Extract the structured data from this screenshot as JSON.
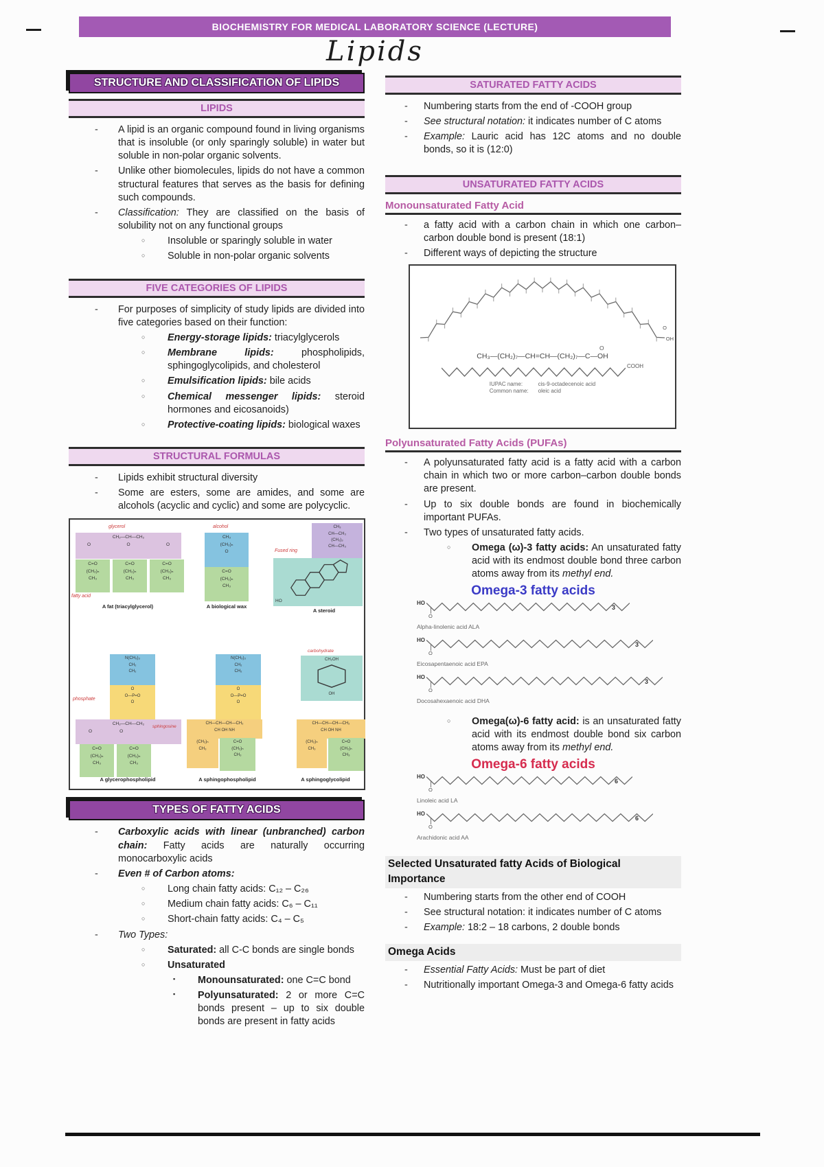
{
  "page": {
    "banner": "BIOCHEMISTRY FOR MEDICAL LABORATORY SCIENCE (LECTURE)",
    "title": "Lipids"
  },
  "colors": {
    "banner_purple": "#a35ab4",
    "header_dark_purple": "#9146a1",
    "header_light_bg": "#efd9ef",
    "header_light_text": "#ab57ad",
    "subhead_pink": "#b75ba4",
    "omega3_blue": "#3a3ac6",
    "omega6_red": "#d62b4e",
    "figure_label_red": "#cc3a3a"
  },
  "left": {
    "main_header": "STRUCTURE AND CLASSIFICATION OF LIPIDS",
    "lipids": {
      "header": "LIPIDS",
      "b1": {
        "text": "A lipid is an organic compound found in living organisms that is insoluble (or only sparingly soluble) in water but soluble in non-polar organic solvents."
      },
      "b2": {
        "text": "Unlike other biomolecules, lipids do not have a common structural features that serves as the basis for defining such compounds."
      },
      "b3": {
        "lead": "Classification:",
        "text": " They are classified on the basis of solubility not on any functional groups"
      },
      "b3a": {
        "text": "Insoluble or sparingly soluble in water"
      },
      "b3b": {
        "text": "Soluble in non-polar organic solvents"
      }
    },
    "five": {
      "header": "FIVE CATEGORIES OF LIPIDS",
      "b1": {
        "text": "For purposes of simplicity of study lipids are divided into five categories based on their function:"
      },
      "cats": [
        {
          "lead": "Energy-storage lipids:",
          "text": " triacylglycerols"
        },
        {
          "lead": "Membrane lipids:",
          "text": " phospholipids, sphingoglycolipids, and cholesterol"
        },
        {
          "lead": "Emulsification lipids:",
          "text": " bile acids"
        },
        {
          "lead": "Chemical messenger lipids:",
          "text": " steroid hormones and eicosanoids)"
        },
        {
          "lead": "Protective-coating lipids:",
          "text": " biological waxes"
        }
      ]
    },
    "structural": {
      "header": "STRUCTURAL FORMULAS",
      "b1": {
        "text": "Lipids exhibit structural diversity"
      },
      "b2": {
        "text": "Some are esters, some are amides, and some are alcohols (acyclic and cyclic) and some are polycyclic."
      }
    },
    "figure": {
      "labels": {
        "glycerol": "glycerol",
        "fatty_acid": "fatty acid",
        "alcohol": "alcohol",
        "fused_ring": "Fused ring",
        "phosphate": "phosphate",
        "sphingosine": "sphingosine",
        "carbohydrate": "carbohydrate"
      },
      "captions": {
        "fat": "A fat (triacylglycerol)",
        "wax": "A biological wax",
        "steroid": "A steroid",
        "glycero": "A glycerophospholipid",
        "sphingoph": "A sphingophospholipid",
        "sphingogly": "A sphingoglycolipid"
      },
      "f": {
        "glycerol_row": "CH₂—CH—CH₂",
        "o": "O",
        "ester": "C=O",
        "chain": "(CH₂)ₙ",
        "methyl": "CH₃",
        "amine": "N(CH₃)₃",
        "ch2": "CH₂",
        "phos": "O—P=O",
        "sphA": "CH—CH—CH—CH₂",
        "sphB": "CH   OH   NH",
        "carb_top": "CH₂OH",
        "ho": "HO",
        "oh": "OH",
        "side1": "CH₃",
        "side2": "CH—CH₃",
        "side3": "(CH₂)₃",
        "side4": "CH—CH₃"
      }
    },
    "types": {
      "header": "TYPES OF FATTY ACIDS",
      "b1": {
        "lead": "Carboxylic acids with linear (unbranched) carbon chain:",
        "text": " Fatty acids are naturally occurring monocarboxylic acids"
      },
      "b2": {
        "lead": "Even # of Carbon atoms:",
        "text": ""
      },
      "chains": [
        {
          "text": "Long chain fatty acids:  C₁₂ – C₂₆"
        },
        {
          "text": "Medium chain fatty acids: C₆ – C₁₁"
        },
        {
          "text": "Short-chain fatty acids:  C₄ – C₅"
        }
      ],
      "b3": {
        "lead": "Two Types:",
        "text": ""
      },
      "sat": {
        "lead": "Saturated:",
        "text": " all C-C bonds are single bonds"
      },
      "unsat": {
        "lead": "Unsaturated",
        "text": ""
      },
      "mono": {
        "lead": "Monounsaturated:",
        "text": " one C=C bond"
      },
      "poly": {
        "lead": "Polyunsaturated:",
        "text": " 2 or more C=C bonds present – up to six double bonds are present in fatty acids"
      }
    }
  },
  "right": {
    "saturated": {
      "header": "SATURATED FATTY ACIDS",
      "b1": {
        "text": "Numbering starts from the end of -COOH group"
      },
      "b2": {
        "lead": "See structural notation:",
        "text": " it indicates number of C atoms"
      },
      "b3": {
        "lead": "Example:",
        "text": " Lauric acid has 12C atoms and no double bonds, so it is (12:0)"
      }
    },
    "unsaturated": {
      "header": "UNSATURATED FATTY ACIDS",
      "mono_head": "Monounsaturated Fatty Acid",
      "b1": {
        "text": "a fatty acid with a carbon chain in which one carbon–carbon double bond is present (18:1)"
      },
      "b2": {
        "text": "Different ways of depicting the structure"
      },
      "figure": {
        "condensed": "CH₃—(CH₂)₇—CH=CH—(CH₂)₇—C—OH",
        "o": "O",
        "oh": "OH",
        "cooh": "COOH",
        "iupac_label": "IUPAC name:",
        "iupac": "cis-9-octadecenoic acid",
        "common_label": "Common name:",
        "common": "oleic acid"
      }
    },
    "pufa": {
      "head": "Polyunsaturated Fatty Acids (PUFAs)",
      "b1": {
        "text": "A polyunsaturated fatty acid is a fatty acid with a carbon chain in which two or more carbon–carbon double bonds are present."
      },
      "b2": {
        "text": "Up to six double bonds are found in biochemically important PUFAs."
      },
      "b3": {
        "text": "Two types of unsaturated fatty acids."
      },
      "omega3": {
        "lead": "Omega (ω)-3 fatty acids:",
        "text": " An unsaturated fatty acid with its endmost double bond three carbon atoms away from its ",
        "tail": "methyl end."
      },
      "omega3_title": "Omega-3 fatty acids",
      "omega3_structs": [
        {
          "ho": "HO",
          "o": "O",
          "num": "3",
          "name": "Alpha-linolenic acid   ALA"
        },
        {
          "ho": "HO",
          "o": "O",
          "num": "3",
          "name": "Eicosapentaenoic acid   EPA"
        },
        {
          "ho": "HO",
          "o": "O",
          "num": "3",
          "name": "Docosahexaenoic acid   DHA"
        }
      ],
      "omega6": {
        "lead": "Omega(ω)-6 fatty acid:",
        "text": " is an unsaturated fatty acid with its endmost double bond six carbon atoms away from its ",
        "tail": "methyl end."
      },
      "omega6_title": "Omega-6 fatty acids",
      "omega6_structs": [
        {
          "ho": "HO",
          "o": "O",
          "num": "6",
          "name": "Linoleic acid   LA"
        },
        {
          "ho": "HO",
          "o": "O",
          "num": "6",
          "name": "Arachidonic acid   AA"
        }
      ]
    },
    "selected": {
      "head": "Selected Unsaturated fatty Acids of Biological Importance",
      "b1": {
        "text": "Numbering starts from the other end of COOH"
      },
      "b2": {
        "text": "See structural notation: it indicates number of C atoms"
      },
      "b3": {
        "lead": "Example:",
        "text": " 18:2 – 18 carbons, 2 double bonds"
      }
    },
    "omega_acids": {
      "head": "Omega Acids",
      "b1": {
        "lead": "Essential Fatty Acids:",
        "text": " Must be part of diet"
      },
      "b2": {
        "text": "Nutritionally important Omega-3 and Omega-6 fatty acids"
      }
    }
  }
}
